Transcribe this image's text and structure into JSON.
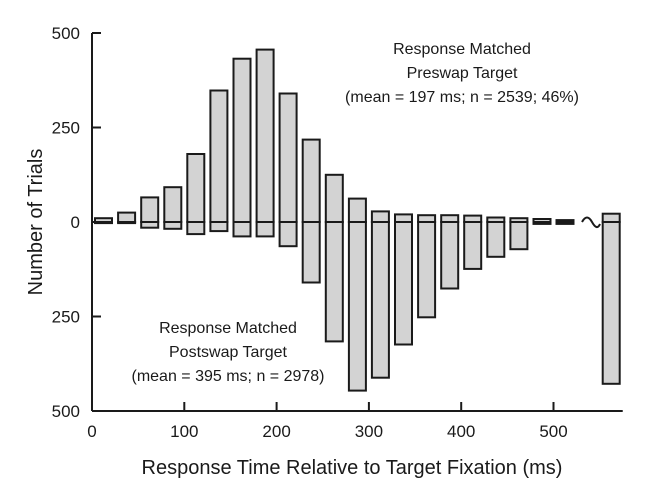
{
  "chart_data": {
    "type": "bar",
    "title": "",
    "xlabel": "Response Time Relative to Target Fixation (ms)",
    "ylabel": "Number of Trials",
    "xlim": [
      0,
      575
    ],
    "ylim": [
      -500,
      500
    ],
    "x_ticks": [
      0,
      100,
      200,
      300,
      400,
      500
    ],
    "y_ticks": [
      {
        "value": 500,
        "label": "500"
      },
      {
        "value": 250,
        "label": "250"
      },
      {
        "value": 0,
        "label": "0"
      },
      {
        "value": -250,
        "label": "250"
      },
      {
        "value": -500,
        "label": "500"
      }
    ],
    "bin_width_ms": 25,
    "bin_centers": [
      12.5,
      37.5,
      62.5,
      87.5,
      112.5,
      137.5,
      162.5,
      187.5,
      212.5,
      237.5,
      262.5,
      287.5,
      312.5,
      337.5,
      362.5,
      387.5,
      412.5,
      437.5,
      462.5,
      487.5,
      512.5,
      562.5
    ],
    "series": [
      {
        "name": "Response Matched Preswap Target",
        "direction": "up",
        "values": [
          10,
          25,
          65,
          92,
          180,
          348,
          432,
          456,
          340,
          218,
          125,
          62,
          28,
          20,
          18,
          18,
          17,
          12,
          10,
          8,
          5,
          22
        ]
      },
      {
        "name": "Response Matched Postswap Target",
        "direction": "down",
        "values": [
          3,
          3,
          15,
          18,
          32,
          24,
          38,
          38,
          64,
          160,
          316,
          446,
          412,
          324,
          252,
          176,
          124,
          92,
          72,
          5,
          5,
          428
        ]
      }
    ],
    "annotations": [
      {
        "id": "preswap",
        "lines": [
          "Response Matched",
          "Preswap Target",
          "(mean = 197 ms; n = 2539; 46%)"
        ]
      },
      {
        "id": "postswap",
        "lines": [
          "Response Matched",
          "Postswap Target",
          "(mean = 395 ms; n = 2978)"
        ]
      }
    ],
    "axis_break": "~",
    "bar_fill": "#d3d3d3",
    "bar_stroke": "#1a1a1a"
  }
}
